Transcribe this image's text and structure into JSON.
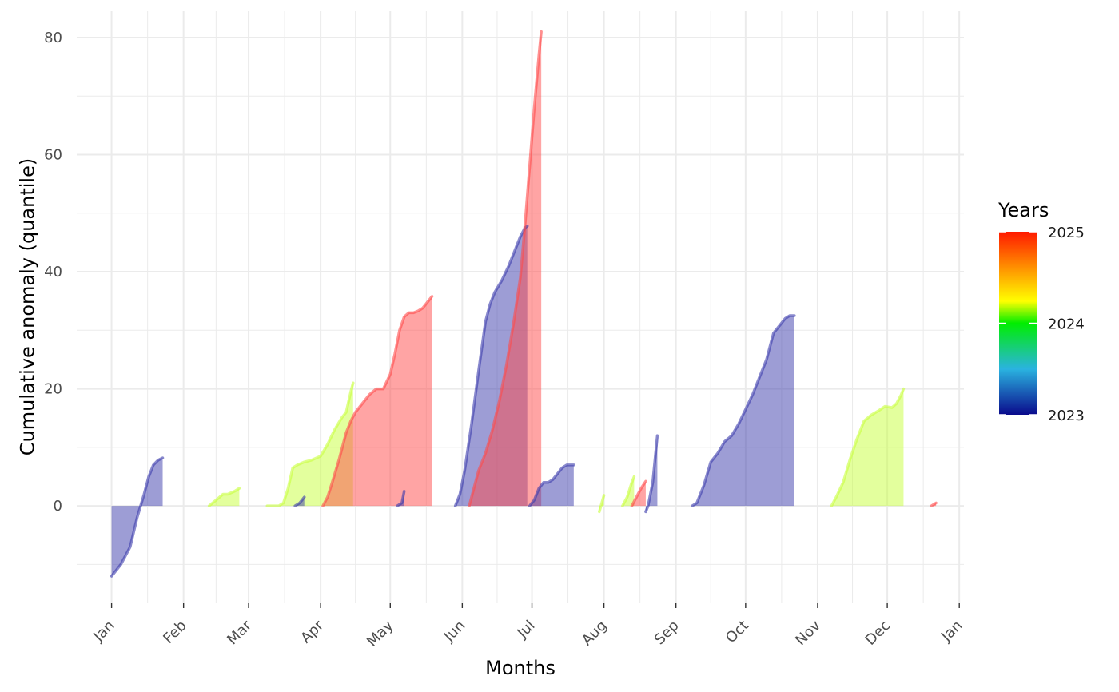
{
  "chart_data": {
    "type": "area",
    "title": "",
    "xlabel": "Months",
    "ylabel": "Cumulative anomaly (quantile)",
    "x_ticks": [
      "Jan",
      "Feb",
      "Mar",
      "Apr",
      "May",
      "Jun",
      "Jul",
      "Aug",
      "Sep",
      "Oct",
      "Nov",
      "Dec",
      "Jan"
    ],
    "x_tick_dates": [
      "2023-01-01",
      "2023-02-01",
      "2023-03-01",
      "2023-04-01",
      "2023-05-01",
      "2023-06-01",
      "2023-07-01",
      "2023-08-01",
      "2023-09-01",
      "2023-10-01",
      "2023-11-01",
      "2023-12-01",
      "2024-01-01"
    ],
    "xlim": [
      "2022-12-17",
      "2024-01-03"
    ],
    "ylim": [
      -16.5,
      84.5
    ],
    "y_ticks": [
      0,
      20,
      40,
      60,
      80
    ],
    "grid": true,
    "legend": {
      "title": "Years",
      "placement": "right",
      "labels": [
        2023,
        2024,
        2025
      ],
      "gradient_colors": [
        "#0000b0",
        "#00ff00",
        "#ffff00",
        "#ff0000"
      ]
    },
    "year_colors": {
      "2023": "#3b3bab",
      "2024": "#c8ff3c",
      "2025": "#ff4a4a"
    },
    "series": [
      {
        "year": 2023,
        "x": [
          "2023-01-01",
          "2023-01-05",
          "2023-01-09",
          "2023-01-12",
          "2023-01-15",
          "2023-01-17",
          "2023-01-19",
          "2023-01-21",
          "2023-01-23"
        ],
        "y": [
          -12,
          -10,
          -7,
          -2,
          2,
          5,
          7,
          7.8,
          8.2
        ]
      },
      {
        "year": 2024,
        "x": [
          "2023-02-12",
          "2023-02-15",
          "2023-02-18",
          "2023-02-20",
          "2023-02-23",
          "2023-02-25"
        ],
        "y": [
          0,
          1,
          2,
          2,
          2.5,
          3
        ]
      },
      {
        "year": 2024,
        "x": [
          "2023-03-09",
          "2023-03-11",
          "2023-03-14",
          "2023-03-16",
          "2023-03-18",
          "2023-03-20",
          "2023-03-22",
          "2023-03-25",
          "2023-03-28",
          "2023-04-01",
          "2023-04-04",
          "2023-04-07",
          "2023-04-10",
          "2023-04-12",
          "2023-04-14",
          "2023-04-15"
        ],
        "y": [
          0,
          0,
          0,
          0.5,
          3,
          6.5,
          7,
          7.5,
          7.8,
          8.5,
          10.5,
          13,
          15,
          16,
          19.5,
          21
        ]
      },
      {
        "year": 2023,
        "x": [
          "2023-03-21",
          "2023-03-23",
          "2023-03-25"
        ],
        "y": [
          0,
          0.5,
          1.5
        ]
      },
      {
        "year": 2025,
        "x": [
          "2023-04-02",
          "2023-04-04",
          "2023-04-06",
          "2023-04-09",
          "2023-04-12",
          "2023-04-14",
          "2023-04-16",
          "2023-04-19",
          "2023-04-22",
          "2023-04-25",
          "2023-04-28",
          "2023-05-01",
          "2023-05-03",
          "2023-05-05",
          "2023-05-07",
          "2023-05-09",
          "2023-05-11",
          "2023-05-13",
          "2023-05-15",
          "2023-05-17",
          "2023-05-19"
        ],
        "y": [
          0,
          1.5,
          4,
          8,
          12.5,
          14.5,
          16,
          17.5,
          19,
          20,
          20,
          22.5,
          26,
          30,
          32.3,
          33,
          33,
          33.3,
          33.8,
          34.8,
          35.8
        ]
      },
      {
        "year": 2023,
        "x": [
          "2023-05-04",
          "2023-05-06",
          "2023-05-07"
        ],
        "y": [
          0,
          0.5,
          2.5
        ]
      },
      {
        "year": 2023,
        "x": [
          "2023-05-29",
          "2023-05-31",
          "2023-06-02",
          "2023-06-05",
          "2023-06-08",
          "2023-06-11",
          "2023-06-13",
          "2023-06-15",
          "2023-06-18",
          "2023-06-21",
          "2023-06-24",
          "2023-06-26",
          "2023-06-28",
          "2023-06-29"
        ],
        "y": [
          0,
          2,
          6,
          14,
          23,
          31.5,
          34.5,
          36.5,
          38.5,
          41,
          44,
          46,
          47.5,
          47.8
        ]
      },
      {
        "year": 2025,
        "x": [
          "2023-06-04",
          "2023-06-06",
          "2023-06-08",
          "2023-06-11",
          "2023-06-14",
          "2023-06-17",
          "2023-06-20",
          "2023-06-23",
          "2023-06-26",
          "2023-06-28",
          "2023-06-30",
          "2023-07-02",
          "2023-07-04",
          "2023-07-05"
        ],
        "y": [
          0,
          3,
          6,
          9,
          13,
          18,
          24,
          31,
          39,
          48,
          58,
          68,
          77,
          81
        ]
      },
      {
        "year": 2023,
        "x": [
          "2023-06-30",
          "2023-07-02",
          "2023-07-04",
          "2023-07-06",
          "2023-07-08",
          "2023-07-10",
          "2023-07-12",
          "2023-07-14",
          "2023-07-16",
          "2023-07-19"
        ],
        "y": [
          0,
          1,
          3,
          4,
          4,
          4.5,
          5.5,
          6.5,
          7,
          7
        ]
      },
      {
        "year": 2024,
        "x": [
          "2023-07-30",
          "2023-08-01"
        ],
        "y": [
          -1,
          1.8
        ]
      },
      {
        "year": 2024,
        "x": [
          "2023-08-09",
          "2023-08-11",
          "2023-08-13",
          "2023-08-14"
        ],
        "y": [
          0,
          1.5,
          4,
          5
        ]
      },
      {
        "year": 2025,
        "x": [
          "2023-08-13",
          "2023-08-15",
          "2023-08-17",
          "2023-08-19"
        ],
        "y": [
          0,
          1.5,
          3,
          4.2
        ]
      },
      {
        "year": 2023,
        "x": [
          "2023-08-19",
          "2023-08-20",
          "2023-08-22",
          "2023-08-23",
          "2023-08-24"
        ],
        "y": [
          -1,
          0,
          4,
          8,
          12
        ]
      },
      {
        "year": 2023,
        "x": [
          "2023-09-08",
          "2023-09-10",
          "2023-09-13",
          "2023-09-16",
          "2023-09-19",
          "2023-09-22",
          "2023-09-25",
          "2023-09-28",
          "2023-10-01",
          "2023-10-04",
          "2023-10-07",
          "2023-10-10",
          "2023-10-13",
          "2023-10-16",
          "2023-10-18",
          "2023-10-20",
          "2023-10-22"
        ],
        "y": [
          0,
          0.5,
          3.5,
          7.5,
          9,
          11,
          12,
          14,
          16.5,
          19,
          22,
          25,
          29.5,
          31,
          32,
          32.5,
          32.5
        ]
      },
      {
        "year": 2024,
        "x": [
          "2023-11-07",
          "2023-11-09",
          "2023-11-12",
          "2023-11-15",
          "2023-11-18",
          "2023-11-21",
          "2023-11-24",
          "2023-11-27",
          "2023-11-30",
          "2023-12-03",
          "2023-12-05",
          "2023-12-07",
          "2023-12-08"
        ],
        "y": [
          0,
          1.5,
          4,
          8,
          11.5,
          14.5,
          15.5,
          16.2,
          17,
          16.8,
          17.5,
          19,
          20
        ]
      },
      {
        "year": 2025,
        "x": [
          "2023-12-20",
          "2023-12-22"
        ],
        "y": [
          0,
          0.5
        ]
      }
    ]
  }
}
